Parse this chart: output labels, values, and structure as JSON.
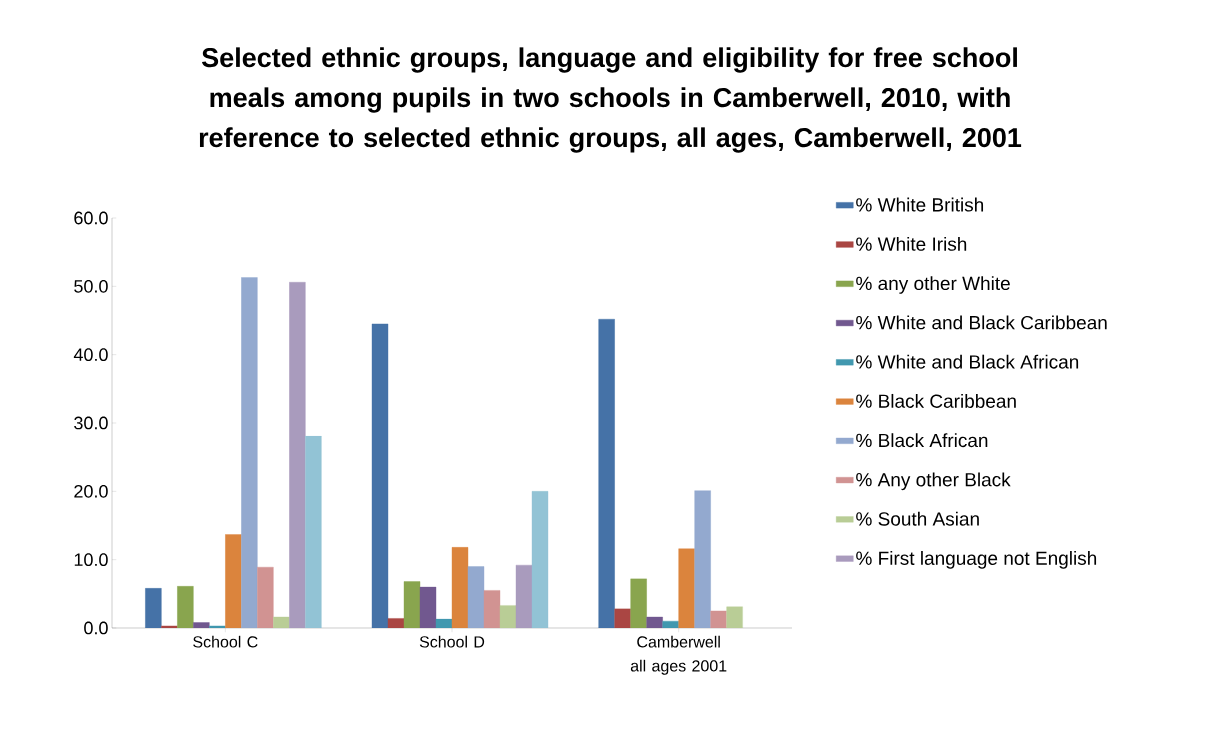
{
  "chart_data": {
    "type": "bar",
    "title": "Selected ethnic groups, language and eligibility for free school meals among pupils in two schools in Camberwell, 2010, with reference to selected ethnic groups, all ages, Camberwell, 2001",
    "categories": [
      "School C",
      "School D",
      "Camberwell all ages 2001"
    ],
    "series": [
      {
        "name": "% White British",
        "color": "#4572a7",
        "values": [
          5.8,
          44.5,
          45.2
        ]
      },
      {
        "name": "% White Irish",
        "color": "#aa4643",
        "values": [
          0.3,
          1.4,
          2.8
        ]
      },
      {
        "name": "% any other White",
        "color": "#89a54e",
        "values": [
          6.1,
          6.8,
          7.2
        ]
      },
      {
        "name": "% White and Black Caribbean",
        "color": "#71588f",
        "values": [
          0.8,
          6.0,
          1.6
        ]
      },
      {
        "name": "% White and Black African",
        "color": "#4198af",
        "values": [
          0.3,
          1.3,
          1.0
        ]
      },
      {
        "name": "% Black Caribbean",
        "color": "#db843d",
        "values": [
          13.7,
          11.8,
          11.6
        ]
      },
      {
        "name": "% Black African",
        "color": "#93a9cf",
        "values": [
          51.3,
          9.0,
          20.1
        ]
      },
      {
        "name": "% Any other Black",
        "color": "#d19392",
        "values": [
          8.9,
          5.5,
          2.5
        ]
      },
      {
        "name": "% South Asian",
        "color": "#b9cd96",
        "values": [
          1.6,
          3.3,
          3.1
        ]
      },
      {
        "name": "% First language not English",
        "color": "#a99bbd",
        "values": [
          50.6,
          9.2,
          null
        ]
      },
      {
        "color": "#92c3d5",
        "values": [
          28.1,
          20.0,
          null
        ]
      }
    ],
    "ylim": [
      0,
      60
    ],
    "yticks": [
      {
        "value": 0,
        "label": "0.0"
      },
      {
        "value": 10,
        "label": "10.0"
      },
      {
        "value": 20,
        "label": "20.0"
      },
      {
        "value": 30,
        "label": "30.0"
      },
      {
        "value": 40,
        "label": "40.0"
      },
      {
        "value": 50,
        "label": "50.0"
      },
      {
        "value": 60,
        "label": "60.0"
      }
    ],
    "grid": false,
    "legend": "right"
  }
}
